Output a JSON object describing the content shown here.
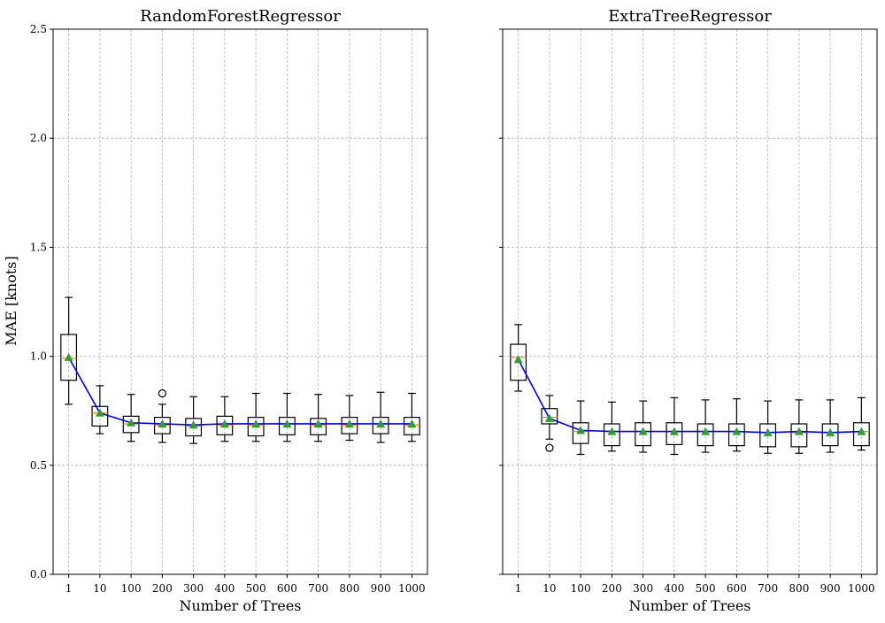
{
  "chart_data": [
    {
      "type": "box",
      "title": "RandomForestRegressor",
      "xlabel": "Number of Trees",
      "ylabel": "MAE [knots]",
      "ylim": [
        0,
        2.5
      ],
      "yticks": [
        "0.0",
        "0.5",
        "1.0",
        "1.5",
        "2.0",
        "2.5"
      ],
      "categories": [
        "1",
        "10",
        "100",
        "200",
        "300",
        "400",
        "500",
        "600",
        "700",
        "800",
        "900",
        "1000"
      ],
      "boxes": [
        {
          "whislo": 0.78,
          "q1": 0.89,
          "med": 0.99,
          "q3": 1.1,
          "whishi": 1.27,
          "mean": 0.995,
          "fliers": []
        },
        {
          "whislo": 0.645,
          "q1": 0.68,
          "med": 0.74,
          "q3": 0.77,
          "whishi": 0.865,
          "mean": 0.74,
          "fliers": []
        },
        {
          "whislo": 0.61,
          "q1": 0.65,
          "med": 0.69,
          "q3": 0.725,
          "whishi": 0.825,
          "mean": 0.695,
          "fliers": []
        },
        {
          "whislo": 0.605,
          "q1": 0.645,
          "med": 0.685,
          "q3": 0.72,
          "whishi": 0.78,
          "mean": 0.69,
          "fliers": [
            0.83
          ]
        },
        {
          "whislo": 0.6,
          "q1": 0.635,
          "med": 0.68,
          "q3": 0.715,
          "whishi": 0.815,
          "mean": 0.685,
          "fliers": []
        },
        {
          "whislo": 0.61,
          "q1": 0.64,
          "med": 0.685,
          "q3": 0.725,
          "whishi": 0.815,
          "mean": 0.69,
          "fliers": []
        },
        {
          "whislo": 0.61,
          "q1": 0.635,
          "med": 0.685,
          "q3": 0.72,
          "whishi": 0.83,
          "mean": 0.69,
          "fliers": []
        },
        {
          "whislo": 0.61,
          "q1": 0.64,
          "med": 0.69,
          "q3": 0.72,
          "whishi": 0.83,
          "mean": 0.69,
          "fliers": []
        },
        {
          "whislo": 0.61,
          "q1": 0.64,
          "med": 0.685,
          "q3": 0.715,
          "whishi": 0.825,
          "mean": 0.69,
          "fliers": []
        },
        {
          "whislo": 0.615,
          "q1": 0.645,
          "med": 0.685,
          "q3": 0.72,
          "whishi": 0.82,
          "mean": 0.69,
          "fliers": []
        },
        {
          "whislo": 0.605,
          "q1": 0.645,
          "med": 0.69,
          "q3": 0.72,
          "whishi": 0.835,
          "mean": 0.69,
          "fliers": []
        },
        {
          "whislo": 0.61,
          "q1": 0.64,
          "med": 0.685,
          "q3": 0.72,
          "whishi": 0.83,
          "mean": 0.69,
          "fliers": []
        }
      ]
    },
    {
      "type": "box",
      "title": "ExtraTreeRegressor",
      "xlabel": "Number of Trees",
      "ylabel": "",
      "ylim": [
        0,
        2.5
      ],
      "yticks": [
        "",
        "",
        "",
        "",
        "",
        ""
      ],
      "categories": [
        "1",
        "10",
        "100",
        "200",
        "300",
        "400",
        "500",
        "600",
        "700",
        "800",
        "900",
        "1000"
      ],
      "boxes": [
        {
          "whislo": 0.84,
          "q1": 0.89,
          "med": 0.995,
          "q3": 1.055,
          "whishi": 1.145,
          "mean": 0.985,
          "fliers": []
        },
        {
          "whislo": 0.62,
          "q1": 0.69,
          "med": 0.72,
          "q3": 0.76,
          "whishi": 0.82,
          "mean": 0.715,
          "fliers": [
            0.58
          ]
        },
        {
          "whislo": 0.55,
          "q1": 0.6,
          "med": 0.655,
          "q3": 0.695,
          "whishi": 0.795,
          "mean": 0.66,
          "fliers": []
        },
        {
          "whislo": 0.565,
          "q1": 0.59,
          "med": 0.655,
          "q3": 0.69,
          "whishi": 0.79,
          "mean": 0.655,
          "fliers": []
        },
        {
          "whislo": 0.56,
          "q1": 0.59,
          "med": 0.655,
          "q3": 0.695,
          "whishi": 0.795,
          "mean": 0.655,
          "fliers": []
        },
        {
          "whislo": 0.55,
          "q1": 0.595,
          "med": 0.655,
          "q3": 0.695,
          "whishi": 0.81,
          "mean": 0.655,
          "fliers": []
        },
        {
          "whislo": 0.56,
          "q1": 0.59,
          "med": 0.655,
          "q3": 0.69,
          "whishi": 0.8,
          "mean": 0.655,
          "fliers": []
        },
        {
          "whislo": 0.565,
          "q1": 0.59,
          "med": 0.655,
          "q3": 0.69,
          "whishi": 0.805,
          "mean": 0.655,
          "fliers": []
        },
        {
          "whislo": 0.555,
          "q1": 0.585,
          "med": 0.65,
          "q3": 0.69,
          "whishi": 0.795,
          "mean": 0.65,
          "fliers": []
        },
        {
          "whislo": 0.555,
          "q1": 0.585,
          "med": 0.65,
          "q3": 0.69,
          "whishi": 0.8,
          "mean": 0.655,
          "fliers": []
        },
        {
          "whislo": 0.56,
          "q1": 0.59,
          "med": 0.65,
          "q3": 0.69,
          "whishi": 0.8,
          "mean": 0.65,
          "fliers": []
        },
        {
          "whislo": 0.57,
          "q1": 0.59,
          "med": 0.655,
          "q3": 0.695,
          "whishi": 0.81,
          "mean": 0.655,
          "fliers": []
        }
      ]
    }
  ],
  "style": {
    "box_edge": "#000000",
    "median_color": "#ff7f0e",
    "mean_marker_color": "#2ca02c",
    "mean_line_color": "#0000ff",
    "grid": true
  }
}
